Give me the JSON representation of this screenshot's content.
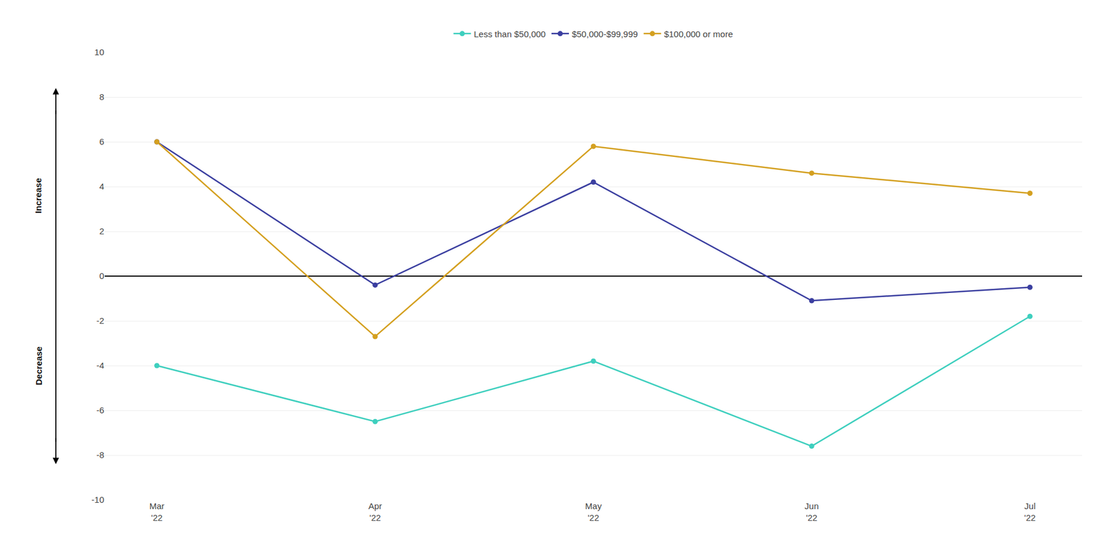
{
  "chart_data": {
    "type": "line",
    "categories": [
      "Mar\n'22",
      "Apr\n'22",
      "May\n'22",
      "Jun\n'22",
      "Jul\n'22"
    ],
    "series": [
      {
        "name": "Less than $50,000",
        "color": "#3ECFBE",
        "marker": "circle",
        "values": [
          -4.0,
          -6.5,
          -3.8,
          -7.6,
          -1.8
        ]
      },
      {
        "name": "$50,000-$99,999",
        "color": "#3B3FA0",
        "marker": "circle",
        "values": [
          6.0,
          -0.4,
          4.2,
          -1.1,
          -0.5
        ]
      },
      {
        "name": "$100,000 or more",
        "color": "#D4A020",
        "marker": "circle",
        "values": [
          6.0,
          -2.7,
          5.8,
          4.6,
          3.7
        ]
      }
    ],
    "ylim": [
      -10,
      10
    ],
    "yticks": [
      -10,
      -8,
      -6,
      -4,
      -2,
      0,
      2,
      4,
      6,
      8,
      10
    ],
    "grid": true,
    "legend": "top",
    "annotations": [
      "Increase",
      "Decrease"
    ]
  }
}
